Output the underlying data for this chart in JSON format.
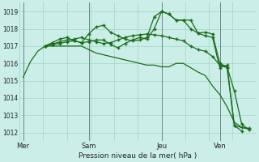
{
  "xlabel": "Pression niveau de la mer( hPa )",
  "bg_color": "#cceee8",
  "grid_color": "#aaddcc",
  "line_color": "#1a6b1a",
  "ylim": [
    1011.5,
    1019.5
  ],
  "yticks": [
    1012,
    1013,
    1014,
    1015,
    1016,
    1017,
    1018,
    1019
  ],
  "day_labels": [
    "Mer",
    "Sam",
    "Jeu",
    "Ven"
  ],
  "day_positions": [
    0,
    9,
    19,
    27
  ],
  "xlim": [
    -0.5,
    32
  ],
  "series1_x": [
    0,
    1,
    2,
    3,
    4,
    5,
    6,
    7,
    8,
    9,
    10,
    11,
    12,
    13,
    14,
    15,
    16,
    17,
    18,
    19,
    20,
    21,
    22,
    23,
    24,
    25,
    26,
    27,
    28,
    29,
    30,
    31
  ],
  "series1_y": [
    1015.2,
    1016.1,
    1016.7,
    1017.0,
    1017.0,
    1017.0,
    1017.0,
    1017.0,
    1017.0,
    1016.8,
    1016.6,
    1016.5,
    1016.4,
    1016.3,
    1016.2,
    1016.1,
    1016.0,
    1015.9,
    1015.9,
    1015.8,
    1015.8,
    1016.0,
    1016.0,
    1015.75,
    1015.5,
    1015.3,
    1014.7,
    1014.2,
    1013.5,
    1012.6,
    1012.3,
    1012.2
  ],
  "series2_x": [
    3,
    4,
    5,
    6,
    7,
    8,
    9,
    10,
    11,
    12,
    13,
    14,
    15,
    16,
    17,
    18,
    19,
    20,
    21,
    22,
    23,
    24,
    25,
    26,
    27,
    28,
    29,
    30
  ],
  "series2_y": [
    1017.0,
    1017.1,
    1017.25,
    1017.35,
    1017.4,
    1017.5,
    1017.35,
    1017.25,
    1017.15,
    1017.2,
    1017.35,
    1017.5,
    1017.6,
    1017.65,
    1017.7,
    1017.65,
    1017.6,
    1017.5,
    1017.4,
    1017.3,
    1017.0,
    1016.8,
    1016.7,
    1016.4,
    1015.9,
    1015.75,
    1012.4,
    1012.1
  ],
  "series3_x": [
    3,
    4,
    5,
    6,
    7,
    8,
    9,
    10,
    11,
    12,
    13,
    14,
    15,
    16,
    17,
    18,
    19,
    20,
    21,
    22,
    23,
    24,
    25,
    26,
    27,
    28,
    29,
    30,
    31
  ],
  "series3_y": [
    1017.0,
    1017.2,
    1017.4,
    1017.5,
    1017.3,
    1017.2,
    1017.7,
    1018.1,
    1018.2,
    1017.8,
    1017.6,
    1017.4,
    1017.3,
    1017.35,
    1017.5,
    1018.7,
    1019.0,
    1018.85,
    1018.5,
    1018.5,
    1018.0,
    1017.75,
    1017.8,
    1017.7,
    1016.0,
    1015.8,
    1014.4,
    1012.5,
    1012.15
  ],
  "series4_x": [
    3,
    4,
    5,
    6,
    7,
    8,
    9,
    10,
    11,
    12,
    13,
    14,
    15,
    16,
    17,
    18,
    19,
    20,
    21,
    22,
    23,
    24,
    25,
    26,
    27,
    28,
    29,
    30,
    31
  ],
  "series4_y": [
    1017.0,
    1017.1,
    1017.15,
    1017.25,
    1017.3,
    1017.2,
    1017.25,
    1017.35,
    1017.35,
    1017.1,
    1016.9,
    1017.15,
    1017.35,
    1017.5,
    1017.4,
    1018.0,
    1019.0,
    1018.85,
    1018.5,
    1018.5,
    1018.5,
    1017.75,
    1017.6,
    1017.5,
    1015.75,
    1015.9,
    1012.4,
    1012.3,
    1012.25
  ]
}
